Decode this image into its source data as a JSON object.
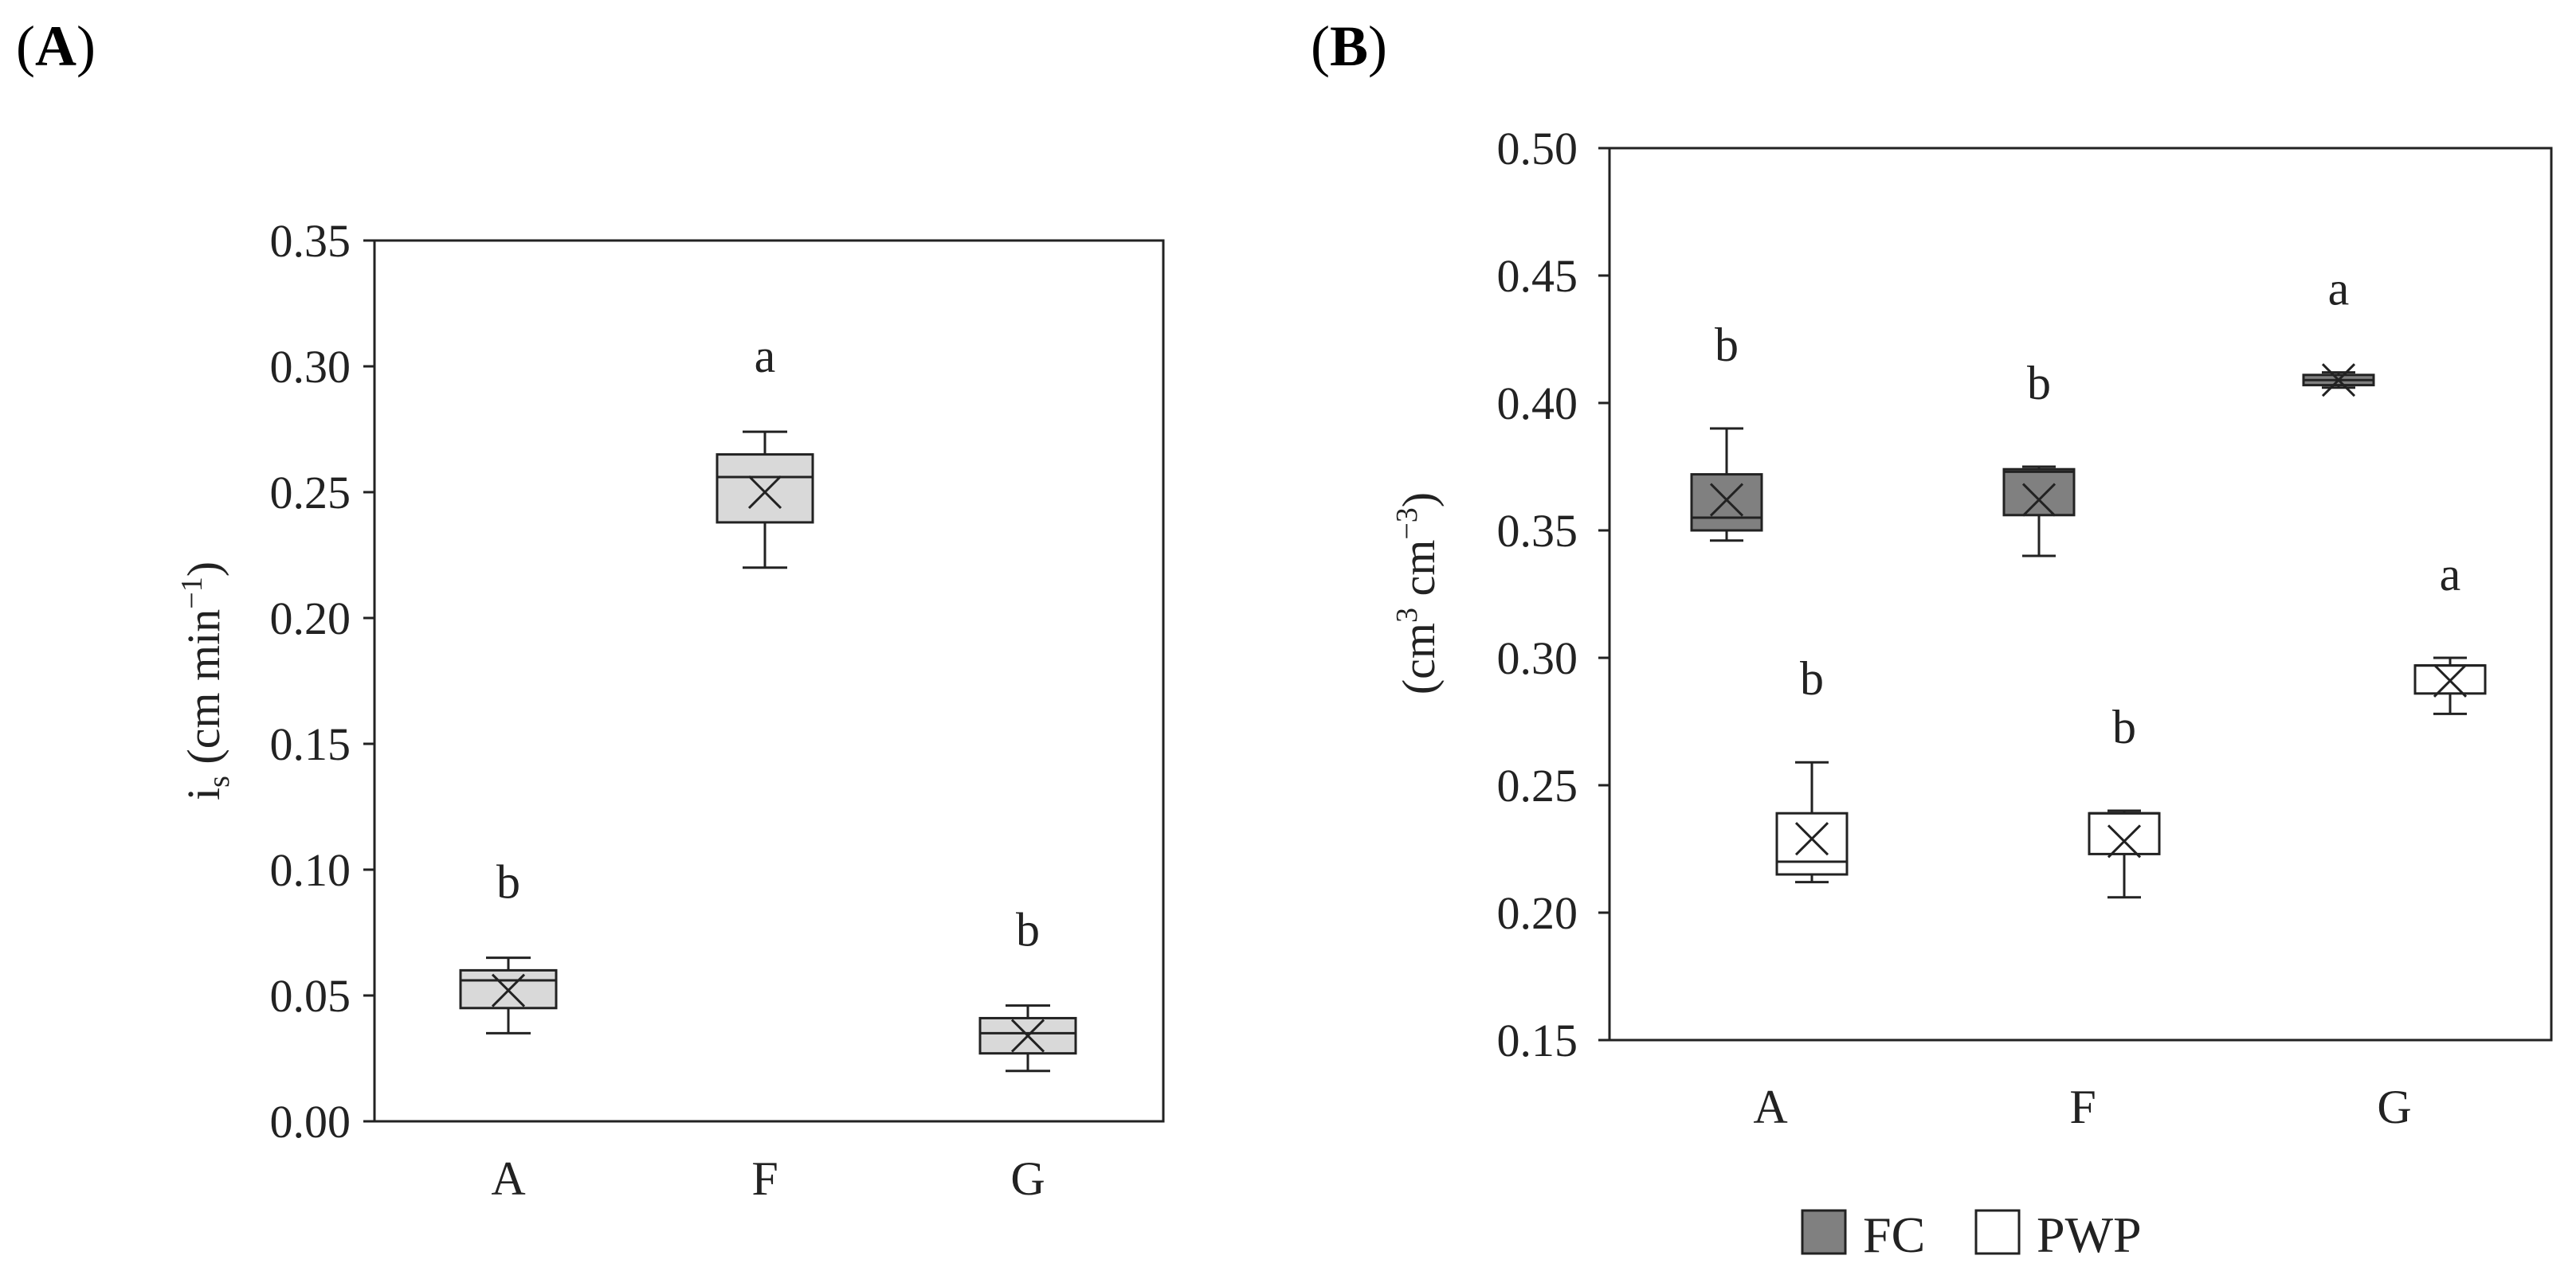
{
  "panels": {
    "a": {
      "label": "A"
    },
    "b": {
      "label": "B"
    }
  },
  "chart_data": [
    {
      "type": "box",
      "panel": "A",
      "ylabel": {
        "main": "i",
        "sub": "s",
        "unit_pre": " (cm min",
        "sup": "−1",
        "unit_post": ")"
      },
      "ylim": [
        0,
        0.35
      ],
      "yticks": [
        0.0,
        0.05,
        0.1,
        0.15,
        0.2,
        0.25,
        0.3,
        0.35
      ],
      "ytick_labels": [
        "0.00",
        "0.05",
        "0.10",
        "0.15",
        "0.20",
        "0.25",
        "0.30",
        "0.35"
      ],
      "categories": [
        "A",
        "F",
        "G"
      ],
      "fill": "#d9d9d9",
      "series": [
        {
          "boxes": [
            {
              "category": "A",
              "min": 0.035,
              "q1": 0.045,
              "median": 0.056,
              "q3": 0.06,
              "max": 0.065,
              "mean": 0.052,
              "letter": "b"
            },
            {
              "category": "F",
              "min": 0.22,
              "q1": 0.238,
              "median": 0.256,
              "q3": 0.265,
              "max": 0.274,
              "mean": 0.25,
              "letter": "a"
            },
            {
              "category": "G",
              "min": 0.02,
              "q1": 0.027,
              "median": 0.035,
              "q3": 0.041,
              "max": 0.046,
              "mean": 0.034,
              "letter": "b"
            }
          ]
        }
      ]
    },
    {
      "type": "box",
      "panel": "B",
      "ylabel": {
        "unit_pre": "(cm",
        "sup1": "3",
        "unit_mid": " cm",
        "sup2": "−3",
        "unit_post": ")"
      },
      "ylim": [
        0.15,
        0.5
      ],
      "yticks": [
        0.15,
        0.2,
        0.25,
        0.3,
        0.35,
        0.4,
        0.45,
        0.5
      ],
      "ytick_labels": [
        "0.15",
        "0.20",
        "0.25",
        "0.30",
        "0.35",
        "0.40",
        "0.45",
        "0.50"
      ],
      "categories": [
        "A",
        "F",
        "G"
      ],
      "series": [
        {
          "name": "FC",
          "fill": "#808080",
          "boxes": [
            {
              "category": "A",
              "min": 0.346,
              "q1": 0.35,
              "median": 0.355,
              "q3": 0.372,
              "max": 0.39,
              "mean": 0.362,
              "letter": "b"
            },
            {
              "category": "F",
              "min": 0.34,
              "q1": 0.356,
              "median": 0.373,
              "q3": 0.374,
              "max": 0.375,
              "mean": 0.362,
              "letter": "b"
            },
            {
              "category": "G",
              "min": 0.406,
              "q1": 0.407,
              "median": 0.409,
              "q3": 0.411,
              "max": 0.412,
              "mean": 0.409,
              "letter": "a"
            }
          ]
        },
        {
          "name": "PWP",
          "fill": "#ffffff",
          "boxes": [
            {
              "category": "A",
              "min": 0.212,
              "q1": 0.215,
              "median": 0.22,
              "q3": 0.239,
              "max": 0.259,
              "mean": 0.229,
              "letter": "b"
            },
            {
              "category": "F",
              "min": 0.206,
              "q1": 0.223,
              "median": 0.239,
              "q3": 0.239,
              "max": 0.24,
              "mean": 0.228,
              "letter": "b"
            },
            {
              "category": "G",
              "min": 0.278,
              "q1": 0.286,
              "median": 0.297,
              "q3": 0.297,
              "max": 0.3,
              "mean": 0.291,
              "letter": "a"
            }
          ]
        }
      ],
      "legend": {
        "position": "bottom-center",
        "items": [
          "FC",
          "PWP"
        ]
      }
    }
  ]
}
